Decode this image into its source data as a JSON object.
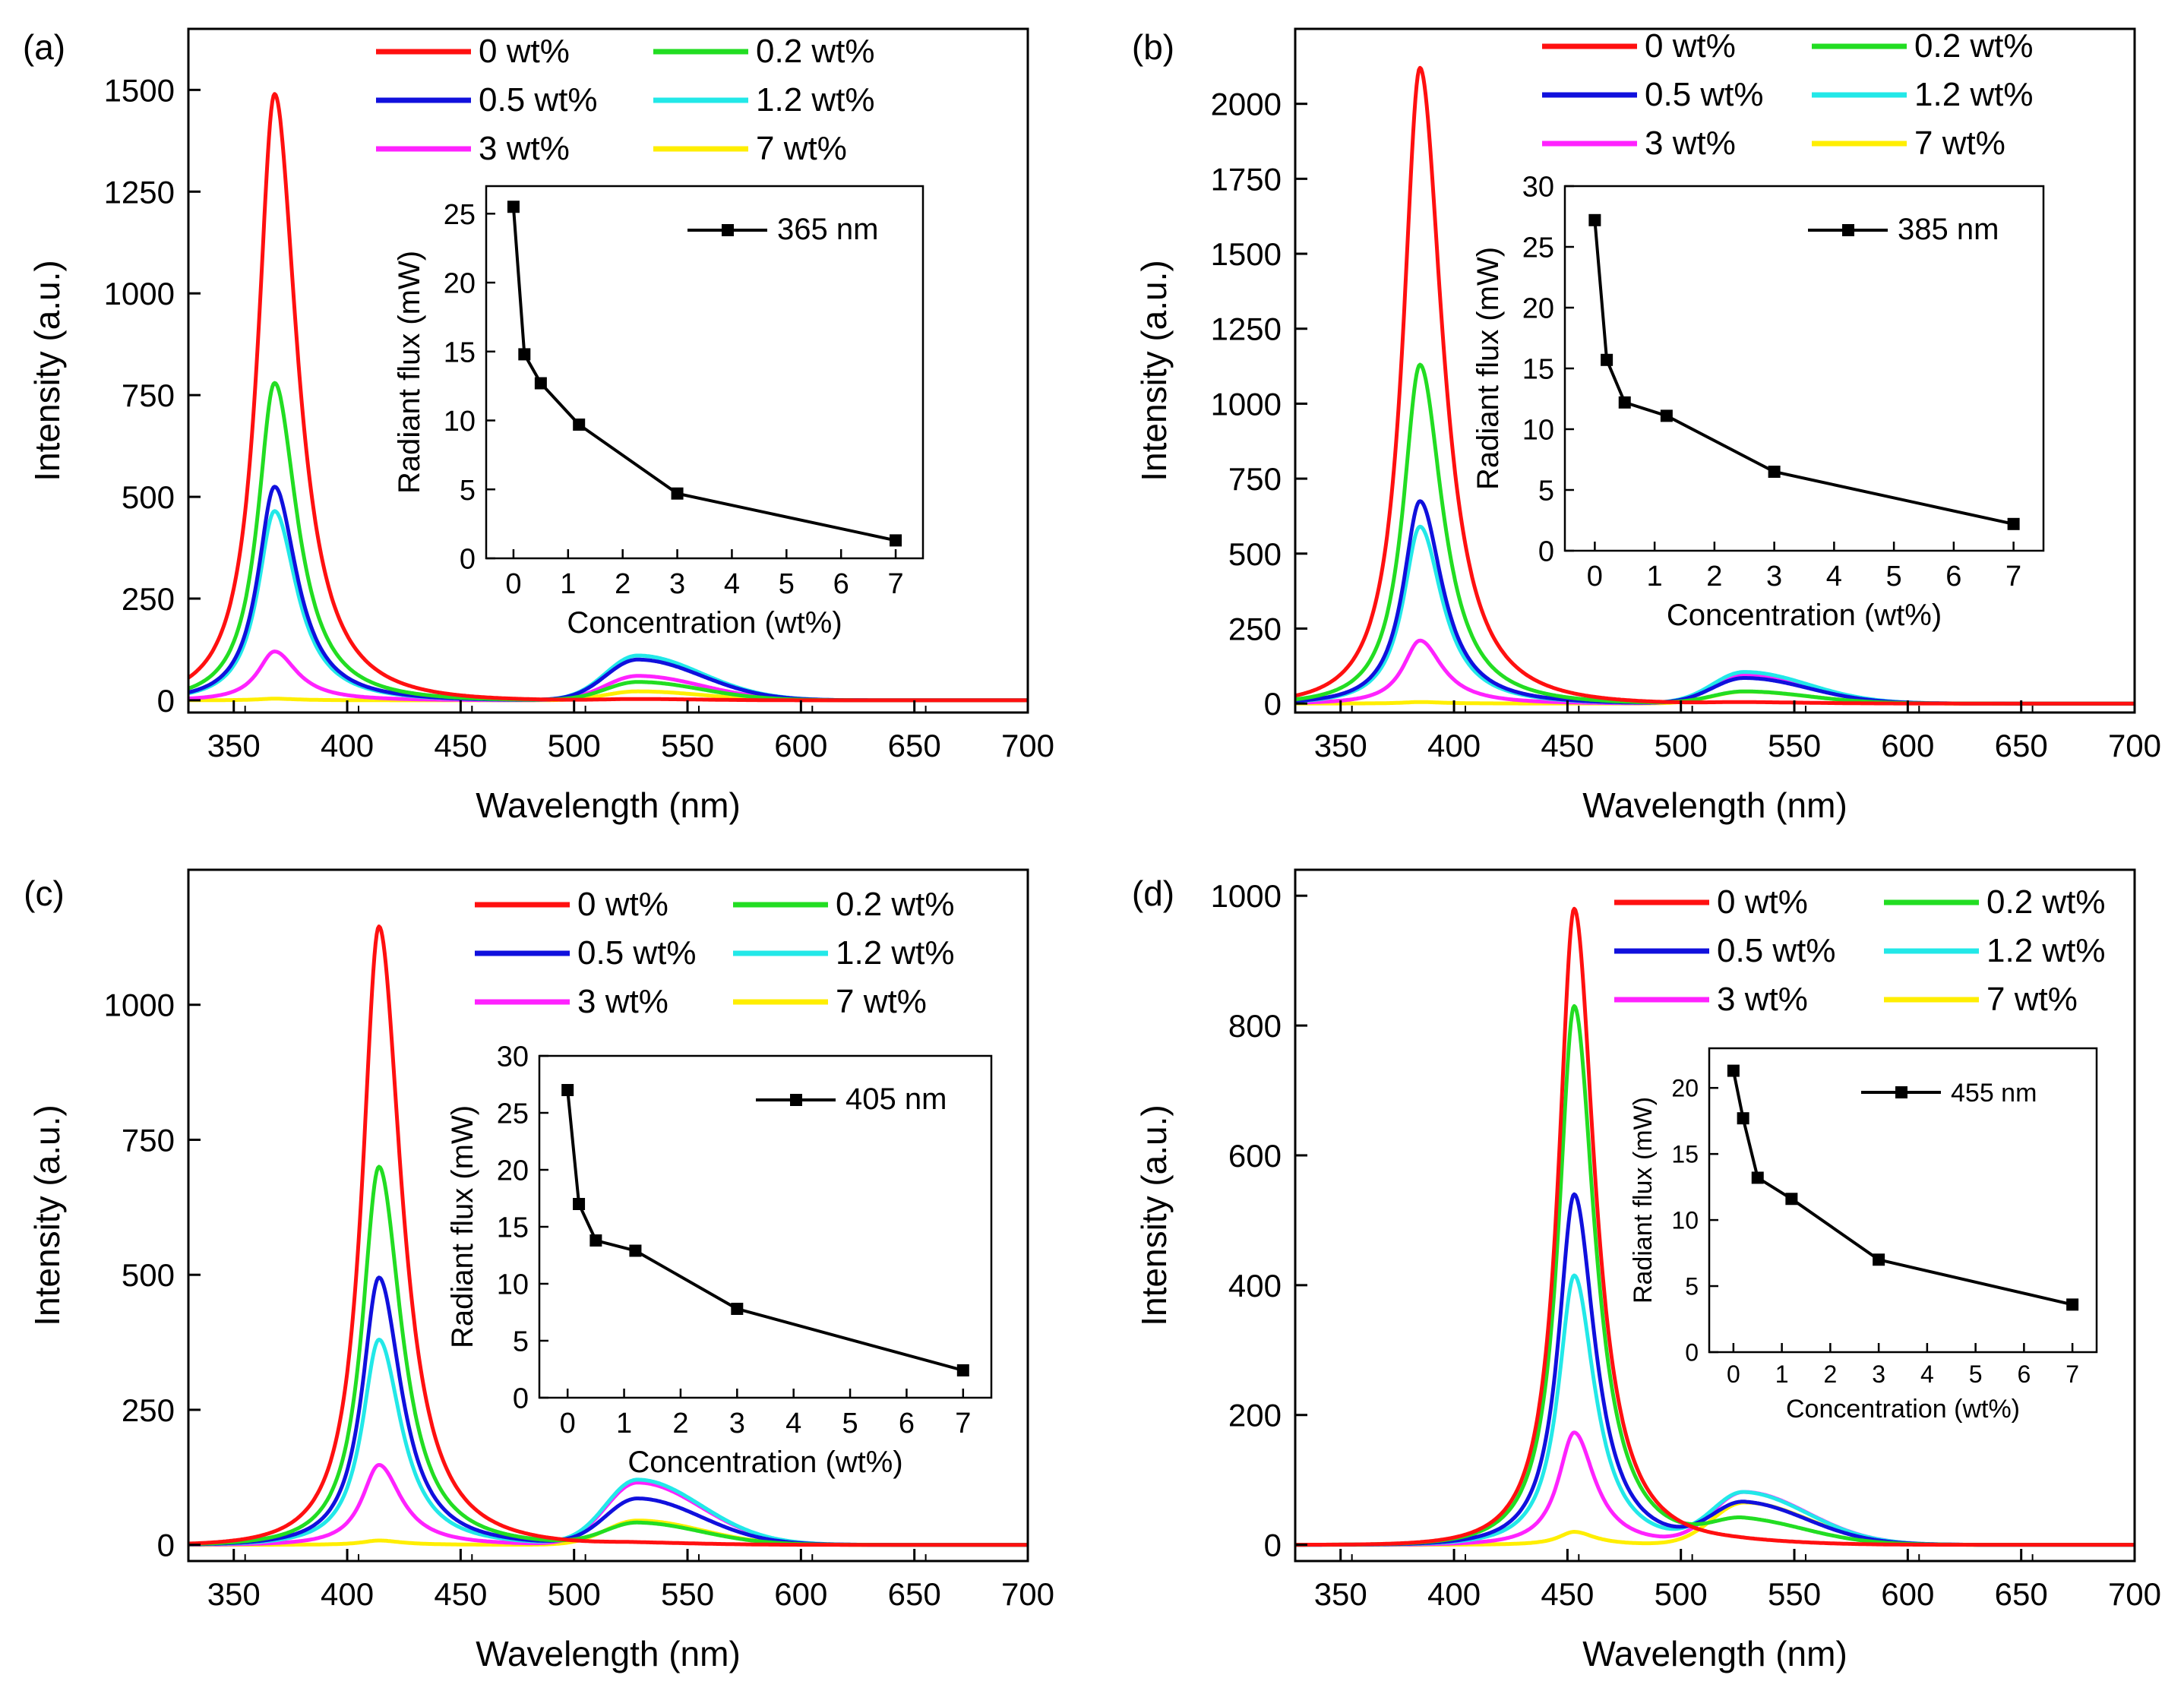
{
  "figure": {
    "colors": {
      "0 wt%": "#ff1010",
      "0.2 wt%": "#22dd22",
      "0.5 wt%": "#1010dd",
      "1.2 wt%": "#22e8e8",
      "3 wt%": "#ff22ff",
      "7 wt%": "#ffee00",
      "inset": "#000000"
    }
  },
  "chart_data": [
    {
      "panel_label": "(a)",
      "type": "line",
      "xlabel": "Wavelength (nm)",
      "ylabel": "Intensity (a.u.)",
      "xlim": [
        330,
        700
      ],
      "ylim": [
        -30,
        1650
      ],
      "xticks": [
        350,
        400,
        450,
        500,
        550,
        600,
        650,
        700
      ],
      "yticks": [
        0,
        250,
        500,
        750,
        1000,
        1250,
        1500
      ],
      "legend": [
        "0 wt%",
        "0.2 wt%",
        "0.5 wt%",
        "1.2 wt%",
        "3 wt%",
        "7 wt%"
      ],
      "series": [
        {
          "name": "0 wt%",
          "peak_nm": 368,
          "peak_intensity": 1490,
          "green_peak": 3
        },
        {
          "name": "0.2 wt%",
          "peak_nm": 368,
          "peak_intensity": 780,
          "green_peak": 45
        },
        {
          "name": "0.5 wt%",
          "peak_nm": 368,
          "peak_intensity": 525,
          "green_peak": 100
        },
        {
          "name": "1.2 wt%",
          "peak_nm": 368,
          "peak_intensity": 465,
          "green_peak": 110
        },
        {
          "name": "3 wt%",
          "peak_nm": 368,
          "peak_intensity": 120,
          "green_peak": 60
        },
        {
          "name": "7 wt%",
          "peak_nm": 368,
          "peak_intensity": 4,
          "green_peak": 22
        }
      ],
      "inset": {
        "xlabel": "Concentration (wt%)",
        "ylabel": "Radiant flux (mW)",
        "legend": "365 nm",
        "xlim": [
          -0.5,
          7.5
        ],
        "ylim": [
          0,
          27
        ],
        "xticks": [
          0,
          1,
          2,
          3,
          4,
          5,
          6,
          7
        ],
        "yticks": [
          0,
          5,
          10,
          15,
          20,
          25
        ],
        "x": [
          0,
          0.2,
          0.5,
          1.2,
          3,
          7
        ],
        "y": [
          25.5,
          14.8,
          12.7,
          9.7,
          4.7,
          1.3
        ]
      }
    },
    {
      "panel_label": "(b)",
      "type": "line",
      "xlabel": "Wavelength (nm)",
      "ylabel": "Intensity (a.u.)",
      "xlim": [
        330,
        700
      ],
      "ylim": [
        -30,
        2250
      ],
      "xticks": [
        350,
        400,
        450,
        500,
        550,
        600,
        650,
        700
      ],
      "yticks": [
        0,
        250,
        500,
        750,
        1000,
        1250,
        1500,
        1750,
        2000
      ],
      "legend": [
        "0 wt%",
        "0.2 wt%",
        "0.5 wt%",
        "1.2 wt%",
        "3 wt%",
        "7 wt%"
      ],
      "series": [
        {
          "name": "0 wt%",
          "peak_nm": 385,
          "peak_intensity": 2120,
          "green_peak": 4
        },
        {
          "name": "0.2 wt%",
          "peak_nm": 385,
          "peak_intensity": 1130,
          "green_peak": 40
        },
        {
          "name": "0.5 wt%",
          "peak_nm": 385,
          "peak_intensity": 675,
          "green_peak": 85
        },
        {
          "name": "1.2 wt%",
          "peak_nm": 385,
          "peak_intensity": 590,
          "green_peak": 105
        },
        {
          "name": "3 wt%",
          "peak_nm": 385,
          "peak_intensity": 210,
          "green_peak": 95
        },
        {
          "name": "7 wt%",
          "peak_nm": 385,
          "peak_intensity": 5,
          "green_peak": 40
        }
      ],
      "inset": {
        "xlabel": "Concentration (wt%)",
        "ylabel": "Radiant flux (mW)",
        "legend": "385 nm",
        "xlim": [
          -0.5,
          7.5
        ],
        "ylim": [
          0,
          30
        ],
        "xticks": [
          0,
          1,
          2,
          3,
          4,
          5,
          6,
          7
        ],
        "yticks": [
          0,
          5,
          10,
          15,
          20,
          25,
          30
        ],
        "x": [
          0,
          0.2,
          0.5,
          1.2,
          3,
          7
        ],
        "y": [
          27.2,
          15.7,
          12.2,
          11.1,
          6.5,
          2.2
        ]
      }
    },
    {
      "panel_label": "(c)",
      "type": "line",
      "xlabel": "Wavelength (nm)",
      "ylabel": "Intensity (a.u.)",
      "xlim": [
        330,
        700
      ],
      "ylim": [
        -30,
        1250
      ],
      "xticks": [
        350,
        400,
        450,
        500,
        550,
        600,
        650,
        700
      ],
      "yticks": [
        0,
        250,
        500,
        750,
        1000
      ],
      "legend": [
        "0 wt%",
        "0.2 wt%",
        "0.5 wt%",
        "1.2 wt%",
        "3 wt%",
        "7 wt%"
      ],
      "series": [
        {
          "name": "0 wt%",
          "peak_nm": 414,
          "peak_intensity": 1145,
          "green_peak": 3
        },
        {
          "name": "0.2 wt%",
          "peak_nm": 414,
          "peak_intensity": 700,
          "green_peak": 40
        },
        {
          "name": "0.5 wt%",
          "peak_nm": 414,
          "peak_intensity": 495,
          "green_peak": 85
        },
        {
          "name": "1.2 wt%",
          "peak_nm": 414,
          "peak_intensity": 380,
          "green_peak": 120
        },
        {
          "name": "3 wt%",
          "peak_nm": 414,
          "peak_intensity": 148,
          "green_peak": 115
        },
        {
          "name": "7 wt%",
          "peak_nm": 414,
          "peak_intensity": 8,
          "green_peak": 45
        }
      ],
      "inset": {
        "xlabel": "Concentration (wt%)",
        "ylabel": "Radiant flux (mW)",
        "legend": "405 nm",
        "xlim": [
          -0.5,
          7.5
        ],
        "ylim": [
          0,
          30
        ],
        "xticks": [
          0,
          1,
          2,
          3,
          4,
          5,
          6,
          7
        ],
        "yticks": [
          0,
          5,
          10,
          15,
          20,
          25,
          30
        ],
        "x": [
          0,
          0.2,
          0.5,
          1.2,
          3,
          7
        ],
        "y": [
          27.0,
          17.0,
          13.8,
          12.9,
          7.8,
          2.4
        ]
      }
    },
    {
      "panel_label": "(d)",
      "type": "line",
      "xlabel": "Wavelength (nm)",
      "ylabel": "Intensity (a.u.)",
      "xlim": [
        330,
        700
      ],
      "ylim": [
        -25,
        1040
      ],
      "xticks": [
        350,
        400,
        450,
        500,
        550,
        600,
        650,
        700
      ],
      "yticks": [
        0,
        200,
        400,
        600,
        800,
        1000
      ],
      "legend": [
        "0 wt%",
        "0.2 wt%",
        "0.5 wt%",
        "1.2 wt%",
        "3 wt%",
        "7 wt%"
      ],
      "series": [
        {
          "name": "0 wt%",
          "peak_nm": 453,
          "peak_intensity": 980,
          "green_peak": 3
        },
        {
          "name": "0.2 wt%",
          "peak_nm": 453,
          "peak_intensity": 830,
          "green_peak": 35
        },
        {
          "name": "0.5 wt%",
          "peak_nm": 453,
          "peak_intensity": 540,
          "green_peak": 62
        },
        {
          "name": "1.2 wt%",
          "peak_nm": 453,
          "peak_intensity": 415,
          "green_peak": 78
        },
        {
          "name": "3 wt%",
          "peak_nm": 453,
          "peak_intensity": 173,
          "green_peak": 80
        },
        {
          "name": "7 wt%",
          "peak_nm": 453,
          "peak_intensity": 20,
          "green_peak": 65
        }
      ],
      "inset": {
        "xlabel": "Concentration (wt%)",
        "ylabel": "Radiant flux (mW)",
        "legend": "455 nm",
        "xlim": [
          -0.5,
          7.5
        ],
        "ylim": [
          0,
          23
        ],
        "xticks": [
          0,
          1,
          2,
          3,
          4,
          5,
          6,
          7
        ],
        "yticks": [
          0,
          5,
          10,
          15,
          20
        ],
        "x": [
          0,
          0.2,
          0.5,
          1.2,
          3,
          7
        ],
        "y": [
          21.3,
          17.7,
          13.2,
          11.6,
          7.0,
          3.6
        ]
      }
    }
  ]
}
